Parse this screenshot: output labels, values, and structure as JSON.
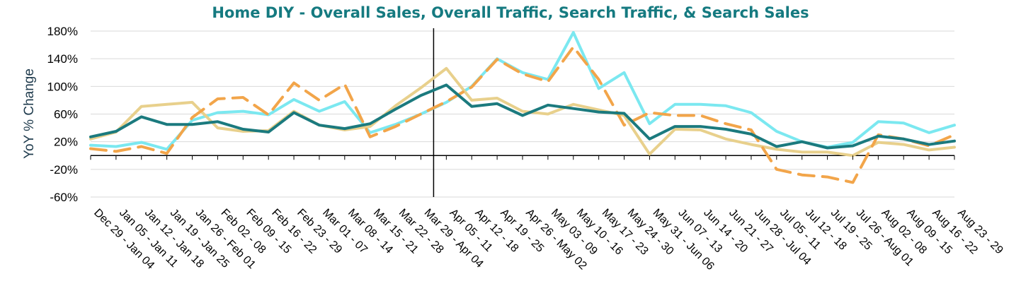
{
  "chart_data": {
    "type": "line",
    "title": "Home DIY - Overall Sales, Overall Traffic, Search Traffic, & Search Sales",
    "ylabel": "YoY % Change",
    "xlabel": "",
    "ylim": [
      -60,
      180
    ],
    "yticks": [
      "180%",
      "140%",
      "100%",
      "60%",
      "20%",
      "-20%",
      "-60%"
    ],
    "ytick_values": [
      180,
      140,
      100,
      60,
      20,
      -20,
      -60
    ],
    "grid": true,
    "legend": "none",
    "marker_label": "Apr 05 - 11",
    "categories": [
      "Dec 29 - Jan 04",
      "Jan 05 - Jan 11",
      "Jan 12 - Jan 18",
      "Jan 19 - Jan 25",
      "Jan 26 - Feb 01",
      "Feb 02 - 08",
      "Feb 09 - 15",
      "Feb 16 - 22",
      "Feb 23 - 29",
      "Mar 01 - 07",
      "Mar 08 - 14",
      "Mar 15 - 21",
      "Mar 22 - 28",
      "Mar 29 - Apr 04",
      "Apr 05 - 11",
      "Apr 12 - 18",
      "Apr 19 - 25",
      "Apr 26 - May 02",
      "May 03 - 09",
      "May 10 - 16",
      "May 17 - 23",
      "May 24 - 30",
      "May 31 - Jun 06",
      "Jun 07 - 13",
      "Jun 14 - 20",
      "Jun 21 - 27",
      "Jun 28 - Jul 04",
      "Jul 05 - 11",
      "Jul 12 - 18",
      "Jul 19 - 25",
      "Jul 26 - Aug 01",
      "Aug 02 - 08",
      "Aug 09 - 15",
      "Aug 16 - 22",
      "Aug 23 - 29"
    ],
    "series": [
      {
        "color": "#1B7A7E",
        "dash": false,
        "values": [
          27,
          35,
          56,
          45,
          45,
          49,
          38,
          34,
          62,
          44,
          39,
          46,
          67,
          87,
          102,
          71,
          75,
          58,
          73,
          68,
          63,
          61,
          24,
          42,
          42,
          38,
          31,
          13,
          20,
          11,
          14,
          28,
          24,
          16,
          21
        ]
      },
      {
        "color": "#7BE8F0",
        "dash": false,
        "values": [
          15,
          13,
          19,
          9,
          51,
          62,
          64,
          59,
          81,
          64,
          78,
          33,
          45,
          60,
          77,
          100,
          140,
          120,
          110,
          178,
          97,
          120,
          46,
          74,
          74,
          72,
          62,
          35,
          20,
          12,
          19,
          49,
          47,
          33,
          44
        ]
      },
      {
        "color": "#E8D08C",
        "dash": false,
        "values": [
          24,
          34,
          71,
          74,
          77,
          40,
          35,
          36,
          64,
          44,
          37,
          42,
          72,
          98,
          126,
          80,
          83,
          64,
          60,
          74,
          66,
          58,
          2,
          38,
          37,
          24,
          16,
          9,
          5,
          5,
          0,
          19,
          16,
          8,
          12
        ]
      },
      {
        "color": "#F2A54A",
        "dash": true,
        "values": [
          10,
          6,
          13,
          3,
          55,
          82,
          84,
          59,
          105,
          80,
          103,
          27,
          42,
          60,
          78,
          99,
          139,
          118,
          107,
          157,
          110,
          44,
          62,
          58,
          58,
          46,
          37,
          -20,
          -28,
          -31,
          -39,
          30,
          24,
          14,
          30
        ]
      }
    ]
  }
}
